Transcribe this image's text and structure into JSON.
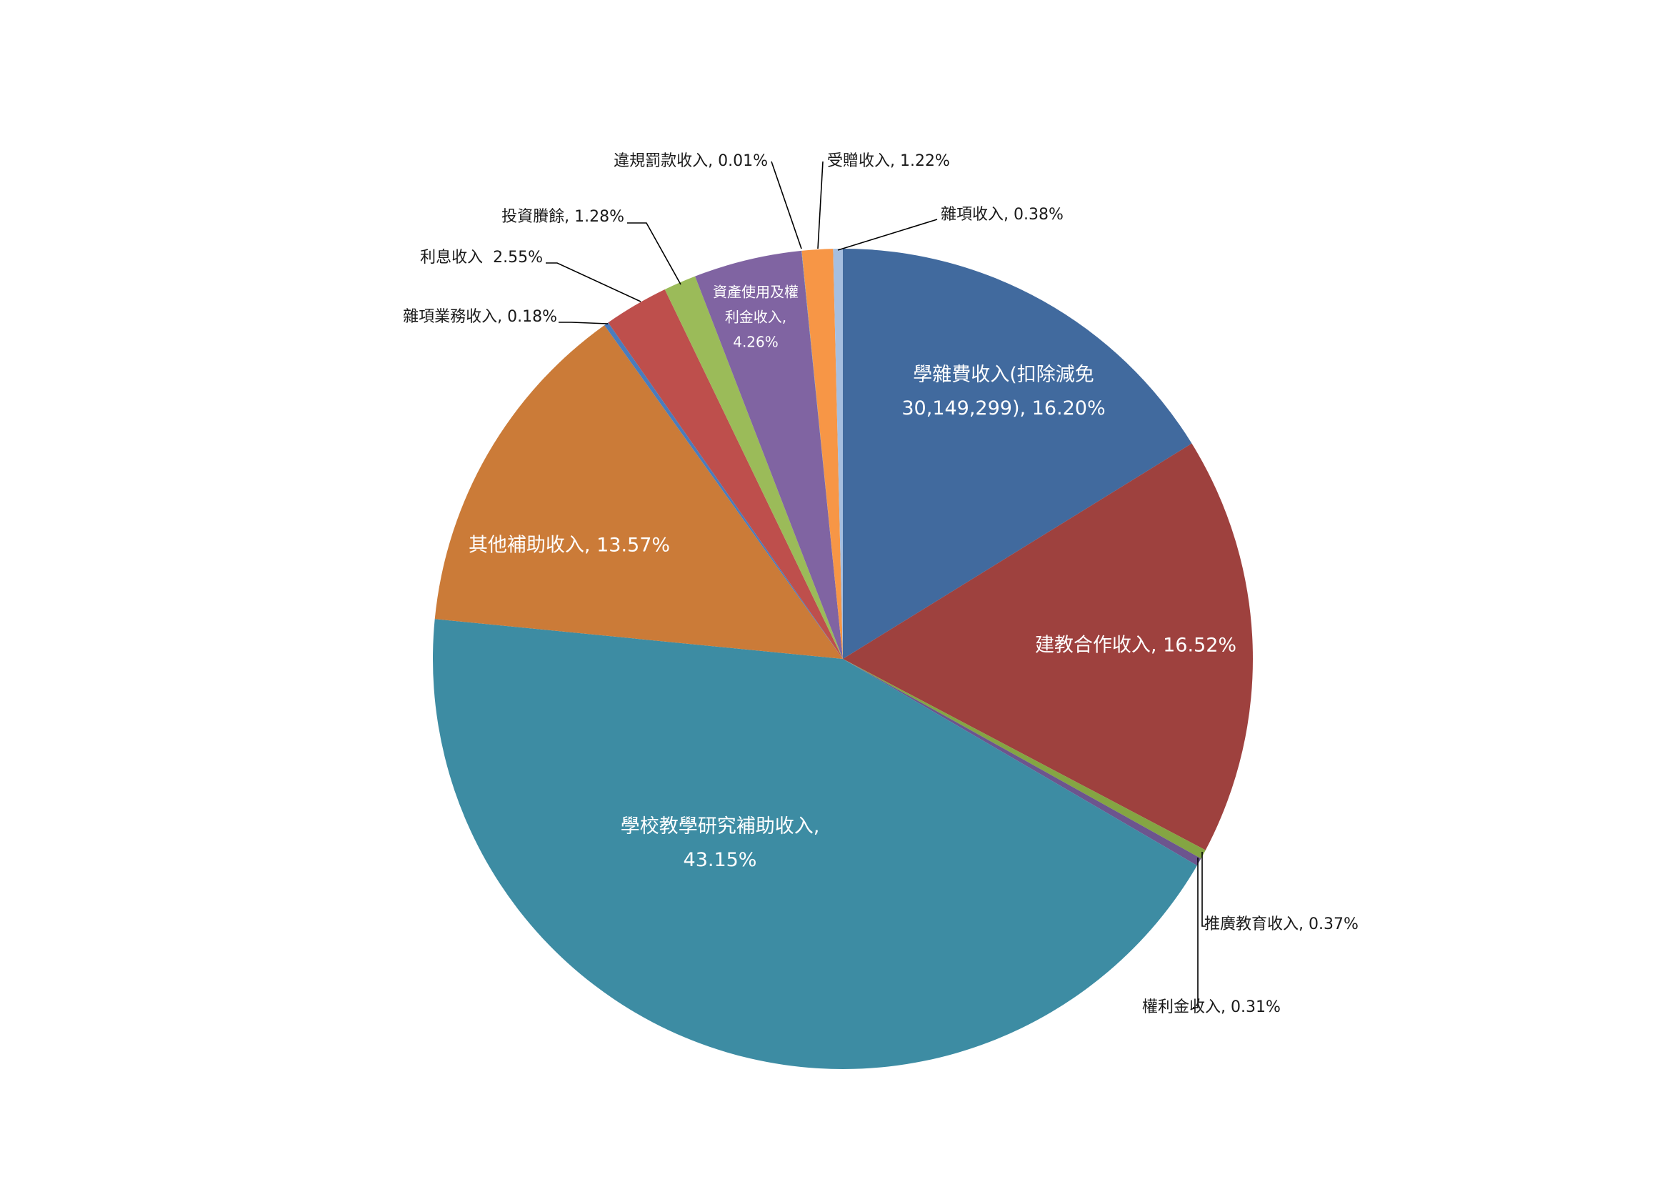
{
  "chart_data": {
    "type": "pie",
    "categories": [
      "學雜費收入(扣除減免30,149,299)",
      "建教合作收入",
      "推廣教育收入",
      "權利金收入",
      "學校教學研究補助收入",
      "其他補助收入",
      "雜項業務收入",
      "利息收入",
      "投資賸餘",
      "資產使用及權利金收入",
      "違規罰款收入",
      "受贈收入",
      "雜項收入"
    ],
    "values": [
      16.2,
      16.52,
      0.37,
      0.31,
      43.15,
      13.57,
      0.18,
      2.55,
      1.28,
      4.26,
      0.01,
      1.22,
      0.38
    ],
    "value_labels": [
      "學雜費收入(扣除減免30,149,299), 16.20%",
      "建教合作收入, 16.52%",
      "推廣教育收入, 0.37%",
      "權利金收入, 0.31%",
      "學校教學研究補助收入, 43.15%",
      "其他補助收入, 13.57%",
      "雜項業務收入, 0.18%",
      "利息收入  2.55%",
      "投資賸餘, 1.28%",
      "資產使用及權利金收入, 4.26%",
      "違規罰款收入, 0.01%",
      "受贈收入, 1.22%",
      "雜項收入, 0.38%"
    ],
    "colors": [
      "#416a9e",
      "#9e413e",
      "#84a543",
      "#6c558e",
      "#3d8ca3",
      "#cb7b38",
      "#4a7cbd",
      "#be4f4c",
      "#9bbb59",
      "#8064a2",
      "#4bacc6",
      "#f79646",
      "#a6bfe0"
    ]
  }
}
